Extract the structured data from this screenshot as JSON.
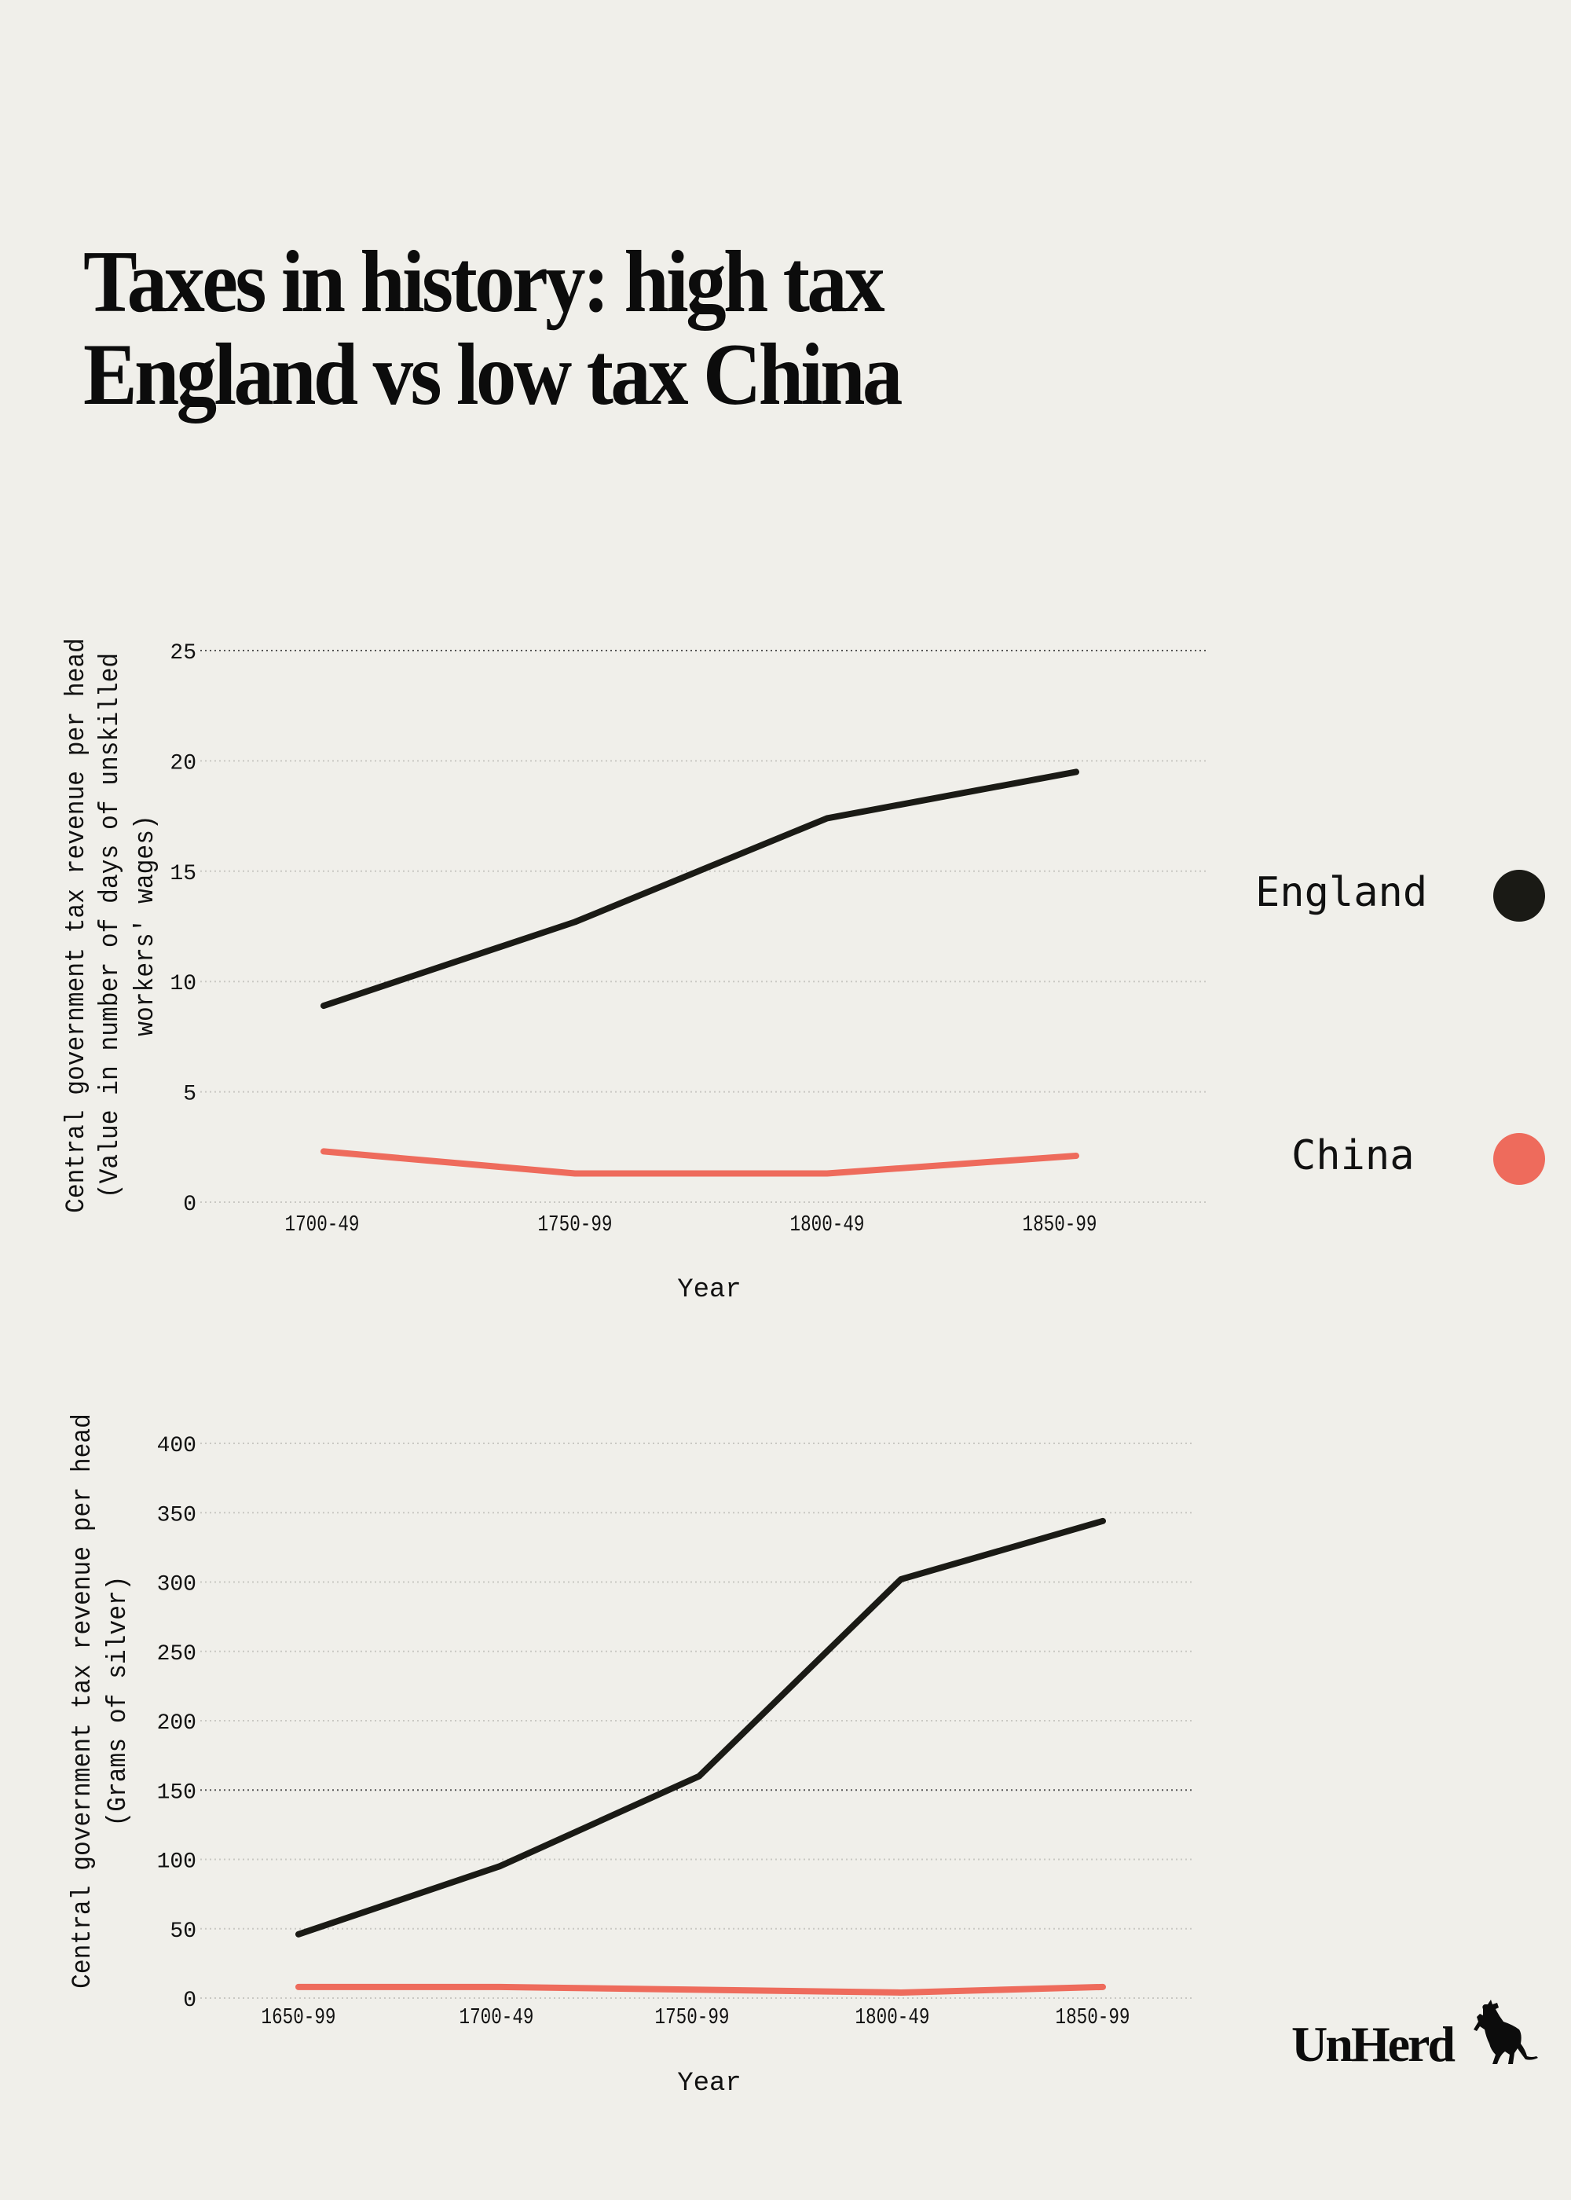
{
  "title": {
    "line1": "Taxes in history: high tax",
    "line2": "England vs low tax China"
  },
  "legend": {
    "items": [
      {
        "label": "England",
        "color": "#1a1a15"
      },
      {
        "label": "China",
        "color": "#ee6b5c"
      }
    ]
  },
  "logo": {
    "text": "UnHerd",
    "icon": "cow-icon"
  },
  "colors": {
    "background": "#f0efea",
    "england": "#1a1a15",
    "china": "#ee6b5c",
    "grid": "#c9c8c3"
  },
  "chart_data": [
    {
      "type": "line",
      "title": "",
      "xlabel": "Year",
      "ylabel": "Central government tax revenue per head",
      "ylabel_line2": "(Value in number of days of unskilled",
      "ylabel_line3": "workers' wages)",
      "categories": [
        "1700-49",
        "1750-99",
        "1800-49",
        "1850-99"
      ],
      "y_ticks": [
        0,
        5,
        10,
        15,
        20,
        25
      ],
      "ylim": [
        0,
        25
      ],
      "grid": true,
      "legend_position": "right",
      "series": [
        {
          "name": "England",
          "color": "#1a1a15",
          "values": [
            8.9,
            12.7,
            17.4,
            19.5
          ]
        },
        {
          "name": "China",
          "color": "#ee6b5c",
          "values": [
            2.3,
            1.3,
            1.3,
            2.1
          ]
        }
      ]
    },
    {
      "type": "line",
      "title": "",
      "xlabel": "Year",
      "ylabel": "Central government tax revenue per head",
      "ylabel_line2": "(Grams of silver)",
      "ylabel_line3": "",
      "categories": [
        "1650-99",
        "1700-49",
        "1750-99",
        "1800-49",
        "1850-99"
      ],
      "y_ticks": [
        0,
        50,
        100,
        150,
        200,
        250,
        300,
        350,
        400
      ],
      "ylim": [
        0,
        400
      ],
      "grid": true,
      "legend_position": "right",
      "series": [
        {
          "name": "England",
          "color": "#1a1a15",
          "values": [
            46,
            95,
            160,
            302,
            344
          ]
        },
        {
          "name": "China",
          "color": "#ee6b5c",
          "values": [
            8,
            8,
            6,
            4,
            8
          ]
        }
      ]
    }
  ]
}
